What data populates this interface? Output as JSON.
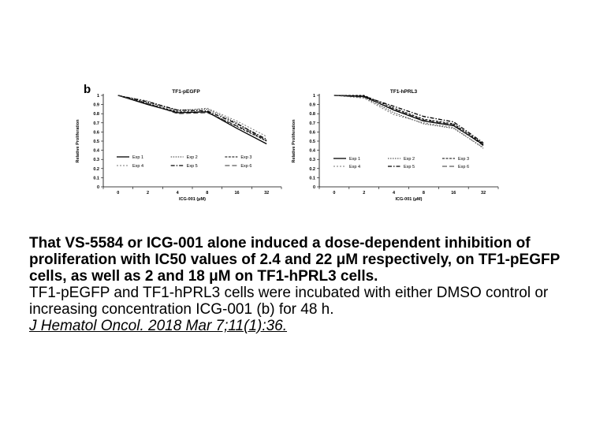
{
  "panel_label": "b",
  "chart_data": [
    {
      "type": "line",
      "title": "TF1-pEGFP",
      "xlabel": "ICG-001 (μM)",
      "ylabel": "Relative Proliferation",
      "categories": [
        "0",
        "2",
        "4",
        "8",
        "16",
        "32"
      ],
      "y_ticks": [
        "0",
        "0.1",
        "0.2",
        "0.3",
        "0.4",
        "0.5",
        "0.6",
        "0.7",
        "0.8",
        "0.9",
        "1"
      ],
      "ylim": [
        0,
        1
      ],
      "legend_position": "lower-left",
      "series": [
        {
          "name": "Exp 1",
          "values": [
            1.0,
            0.9,
            0.81,
            0.82,
            0.64,
            0.47
          ]
        },
        {
          "name": "Exp 2",
          "values": [
            1.0,
            0.92,
            0.84,
            0.85,
            0.7,
            0.5
          ]
        },
        {
          "name": "Exp 3",
          "values": [
            1.0,
            0.91,
            0.82,
            0.82,
            0.66,
            0.5
          ]
        },
        {
          "name": "Exp 4",
          "values": [
            1.0,
            0.94,
            0.83,
            0.86,
            0.72,
            0.55
          ]
        },
        {
          "name": "Exp 5",
          "values": [
            1.0,
            0.93,
            0.84,
            0.83,
            0.69,
            0.52
          ]
        },
        {
          "name": "Exp 6",
          "values": [
            1.0,
            0.91,
            0.8,
            0.81,
            0.67,
            0.51
          ]
        }
      ]
    },
    {
      "type": "line",
      "title": "TF1-hPRL3",
      "xlabel": "ICG-001 (μM)",
      "ylabel": "Relative Proliferation",
      "categories": [
        "0",
        "2",
        "4",
        "8",
        "16",
        "32"
      ],
      "y_ticks": [
        "0",
        "0.1",
        "0.2",
        "0.3",
        "0.4",
        "0.5",
        "0.6",
        "0.7",
        "0.8",
        "0.9",
        "1"
      ],
      "ylim": [
        0,
        1
      ],
      "legend_position": "lower-left",
      "series": [
        {
          "name": "Exp 1",
          "values": [
            1.0,
            0.99,
            0.84,
            0.72,
            0.67,
            0.46
          ]
        },
        {
          "name": "Exp 2",
          "values": [
            1.0,
            0.98,
            0.81,
            0.69,
            0.64,
            0.43
          ]
        },
        {
          "name": "Exp 3",
          "values": [
            1.0,
            1.0,
            0.86,
            0.74,
            0.69,
            0.47
          ]
        },
        {
          "name": "Exp 4",
          "values": [
            1.0,
            0.97,
            0.79,
            0.7,
            0.65,
            0.42
          ]
        },
        {
          "name": "Exp 5",
          "values": [
            1.0,
            0.99,
            0.88,
            0.77,
            0.71,
            0.48
          ]
        },
        {
          "name": "Exp 6",
          "values": [
            1.0,
            0.98,
            0.85,
            0.73,
            0.68,
            0.45
          ]
        }
      ]
    }
  ],
  "caption": {
    "title": "That VS-5584 or ICG-001 alone induced a dose-dependent inhibition of proliferation with IC50 values of 2.4 and 22 μM respectively, on TF1-pEGFP cells, as well as 2 and 18 μM on TF1-hPRL3 cells.",
    "description": "TF1-pEGFP and TF1-hPRL3 cells were incubated with either DMSO control or increasing concentration ICG-001 (b) for 48 h.",
    "citation": "J Hematol Oncol. 2018 Mar 7;11(1):36."
  }
}
